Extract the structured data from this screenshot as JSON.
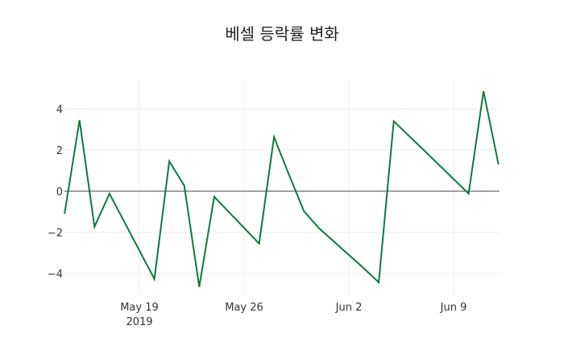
{
  "chart_data": {
    "type": "line",
    "title": "베셀 등락률 변화",
    "xlabel": "",
    "ylabel": "",
    "x": [
      "2019-05-14",
      "2019-05-15",
      "2019-05-16",
      "2019-05-17",
      "2019-05-20",
      "2019-05-21",
      "2019-05-22",
      "2019-05-23",
      "2019-05-24",
      "2019-05-27",
      "2019-05-28",
      "2019-05-29",
      "2019-05-30",
      "2019-05-31",
      "2019-06-03",
      "2019-06-04",
      "2019-06-05",
      "2019-06-07",
      "2019-06-10",
      "2019-06-11",
      "2019-06-12"
    ],
    "series": [
      {
        "name": "등락률",
        "color": "#0b7a3e",
        "values": [
          -1.1,
          3.45,
          -1.73,
          -0.12,
          -4.27,
          1.45,
          0.27,
          -4.65,
          -0.27,
          -2.55,
          2.63,
          0.8,
          -0.98,
          -1.8,
          -3.75,
          -4.43,
          3.4,
          2.0,
          -0.12,
          4.86,
          1.3
        ]
      }
    ],
    "x_ticks": [
      {
        "label": "May 19",
        "sub": "2019",
        "date": "2019-05-19"
      },
      {
        "label": "May 26",
        "sub": "",
        "date": "2019-05-26"
      },
      {
        "label": "Jun 2",
        "sub": "",
        "date": "2019-06-02"
      },
      {
        "label": "Jun 9",
        "sub": "",
        "date": "2019-06-09"
      }
    ],
    "y_ticks": [
      4,
      2,
      0,
      -2,
      -4
    ],
    "y_tick_labels": [
      "4",
      "2",
      "0",
      "−2",
      "−4"
    ],
    "ylim": [
      -5.1,
      5.4
    ],
    "xlim": [
      "2019-05-14",
      "2019-06-12"
    ],
    "grid": true,
    "zeroline": true,
    "legend": false
  }
}
